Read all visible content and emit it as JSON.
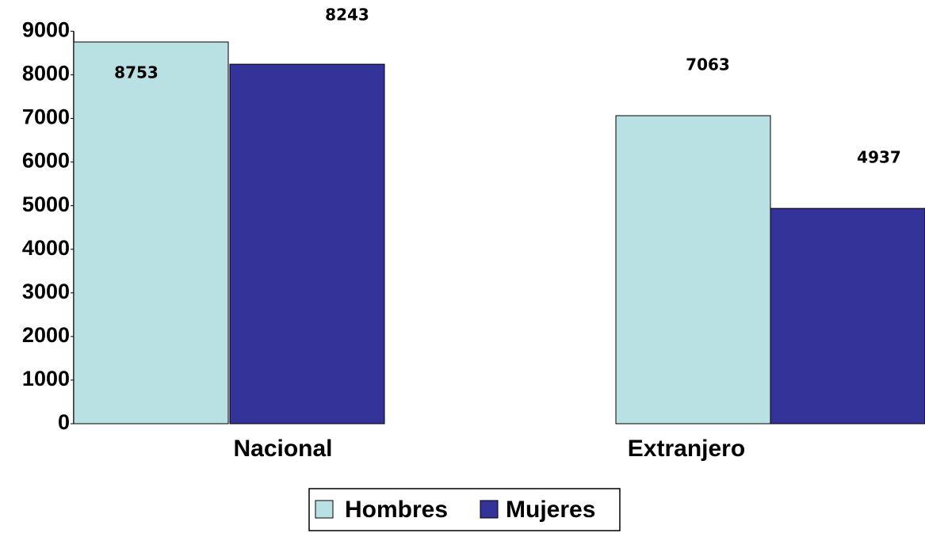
{
  "chart_data": {
    "type": "bar",
    "categories": [
      "Nacional",
      "Extranjero"
    ],
    "series": [
      {
        "name": "Hombres",
        "color": "#b9e0e3",
        "values": [
          8753,
          7063
        ]
      },
      {
        "name": "Mujeres",
        "color": "#333399",
        "values": [
          8243,
          4937
        ]
      }
    ],
    "ylim": [
      0,
      9000
    ],
    "yticks": [
      0,
      1000,
      2000,
      3000,
      4000,
      5000,
      6000,
      7000,
      8000,
      9000
    ],
    "legend": "bottom"
  }
}
